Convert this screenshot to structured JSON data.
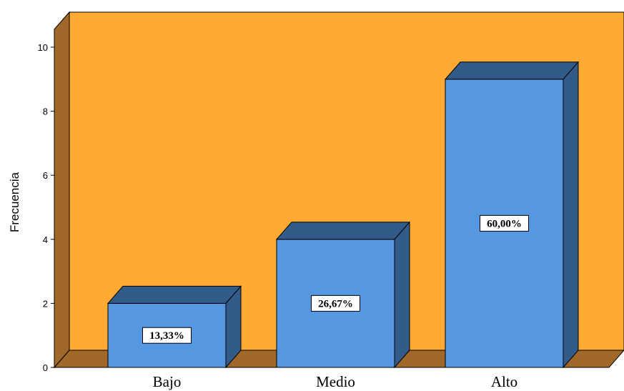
{
  "chart_data": {
    "type": "bar",
    "style": "3d",
    "categories": [
      "Bajo",
      "Medio",
      "Alto"
    ],
    "values": [
      2,
      4,
      9
    ],
    "data_labels": [
      "13,33%",
      "26,67%",
      "60,00%"
    ],
    "ylabel": "Frecuencia",
    "yticks": [
      0,
      2,
      4,
      6,
      8,
      10
    ],
    "ylim": [
      0,
      10
    ],
    "grid": false,
    "colors": {
      "background_wall": "#FFAA33",
      "side_wall": "#A0692A",
      "floor": "#A0692A",
      "bar_front": "#5597E1",
      "bar_top": "#325B8A",
      "bar_side": "#325B8A"
    }
  }
}
